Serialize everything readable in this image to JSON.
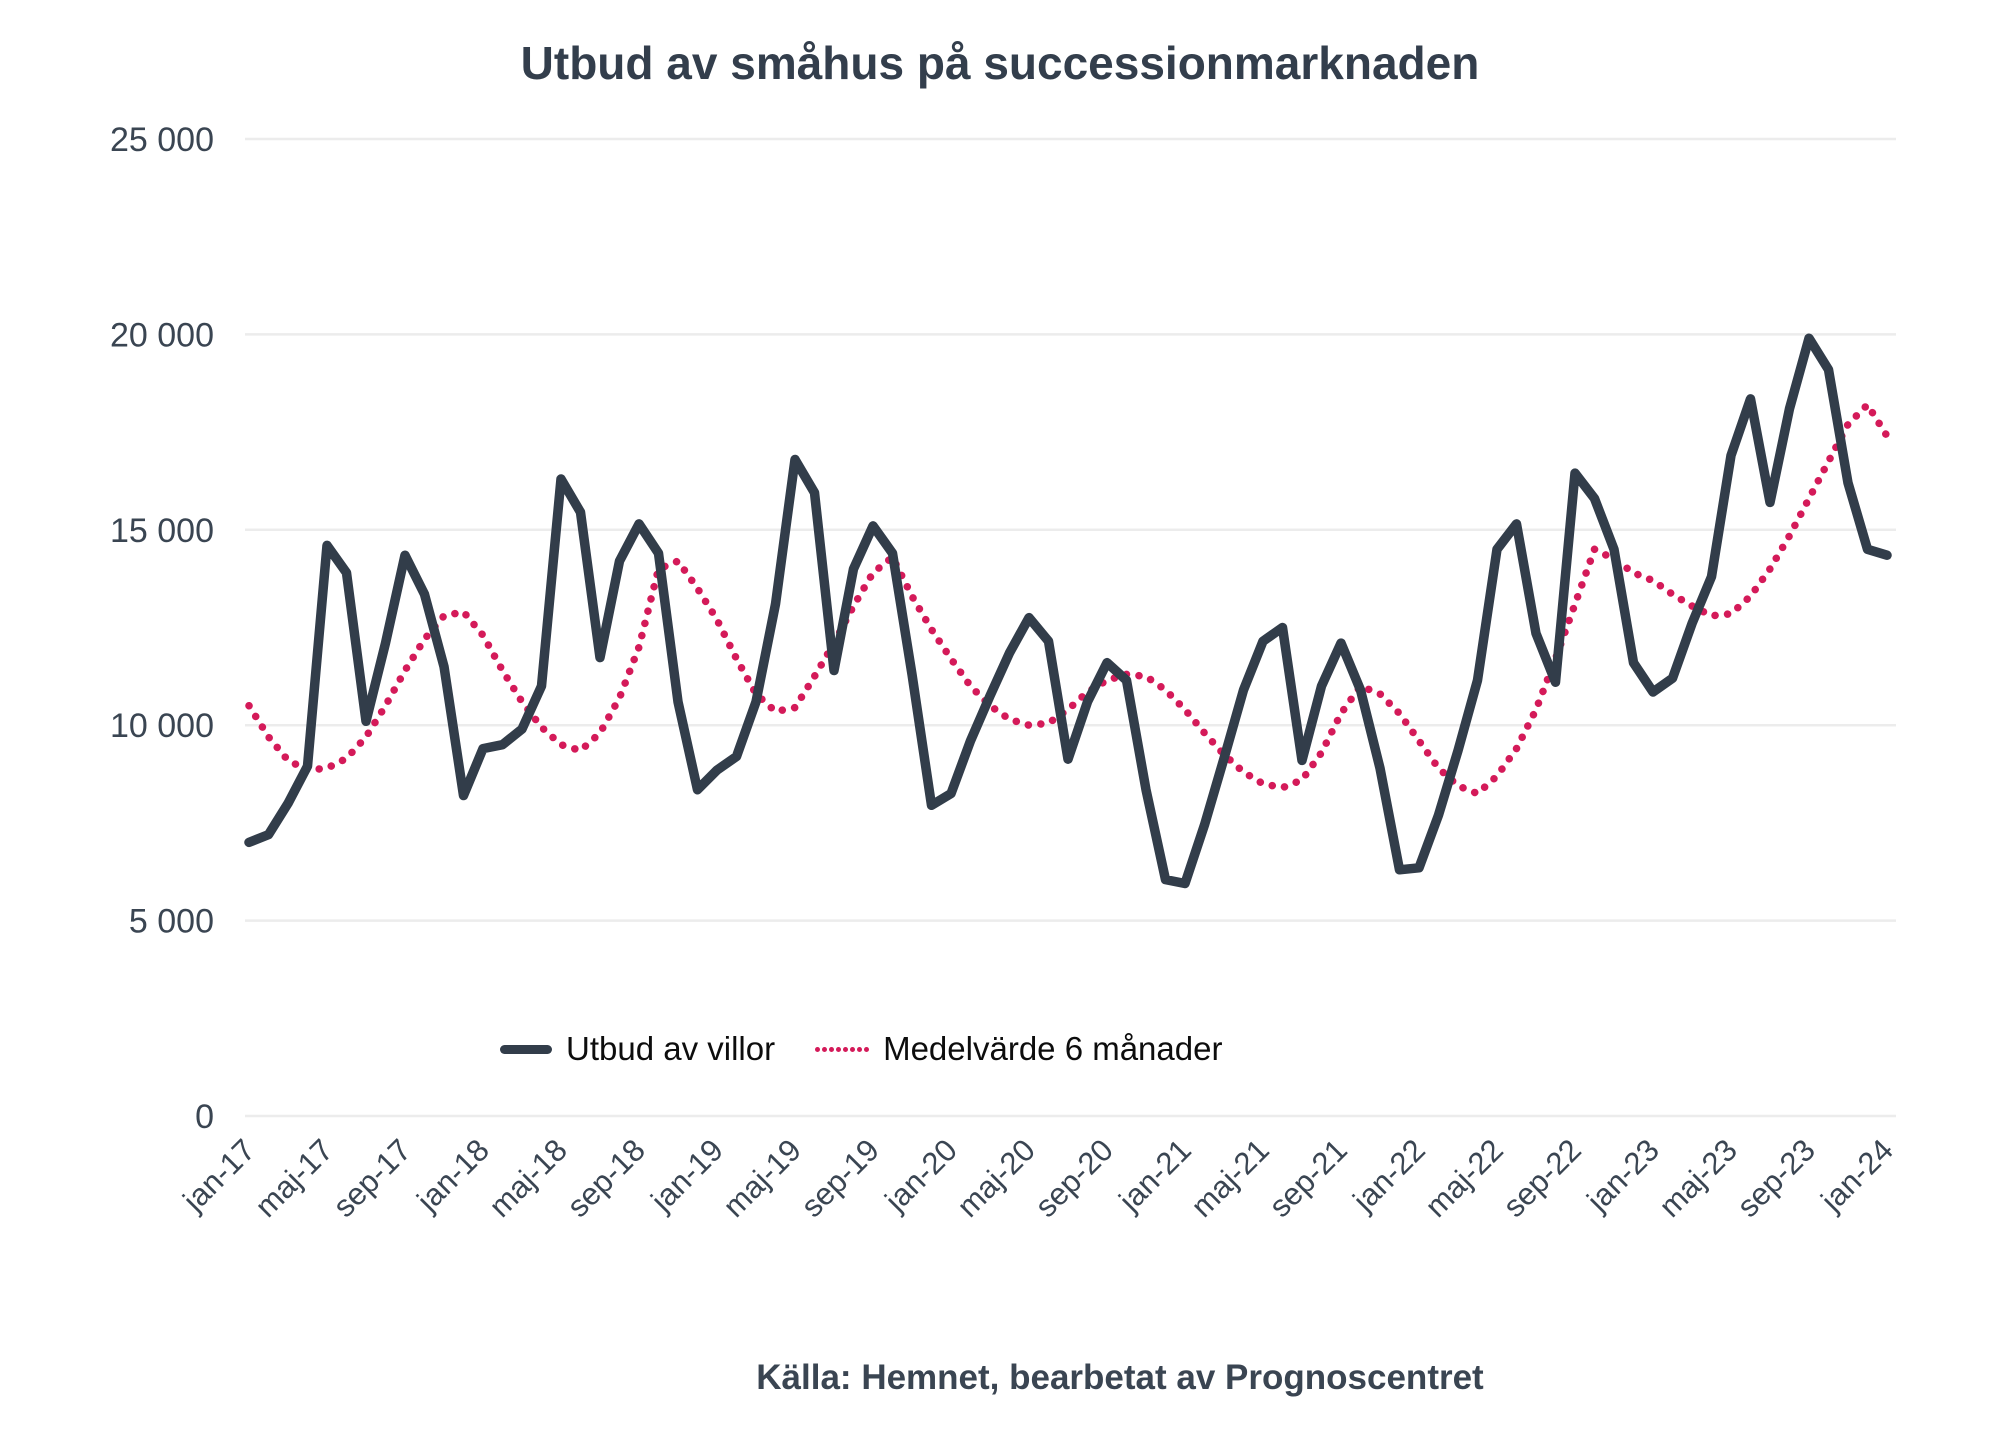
{
  "title": "Utbud av småhus på successionmarknaden",
  "source": "Källa: Hemnet, bearbetat av Prognoscentret",
  "legend": {
    "items": [
      {
        "label": "Utbud av villor",
        "style": "solid"
      },
      {
        "label": "Medelvärde 6 månader",
        "style": "dotted"
      }
    ]
  },
  "colors": {
    "solid_series": "#323d4a",
    "dotted_series": "#d41a59",
    "gridline": "#ececec",
    "axis_text": "#3a4552",
    "title_text": "#333e4c",
    "legend_text": "#0d0d0d",
    "background": "#ffffff"
  },
  "chart_data": {
    "type": "line",
    "title": "Utbud av småhus på successionmarknaden",
    "xlabel": "",
    "ylabel": "",
    "ylim": [
      0,
      25000
    ],
    "yticks": [
      0,
      5000,
      10000,
      15000,
      20000,
      25000
    ],
    "ytick_labels": [
      "0",
      "5 000",
      "10 000",
      "15 000",
      "20 000",
      "25 000"
    ],
    "grid": "horizontal",
    "legend_position": "bottom-center-inside",
    "x_start": "jan-17",
    "x_end": "jan-24",
    "x_interval": "monthly",
    "x_tick_every": 4,
    "x_tick_labels": [
      "jan-17",
      "maj-17",
      "sep-17",
      "jan-18",
      "maj-18",
      "sep-18",
      "jan-19",
      "maj-19",
      "sep-19",
      "jan-20",
      "maj-20",
      "sep-20",
      "jan-21",
      "maj-21",
      "sep-21",
      "jan-22",
      "maj-22",
      "sep-22",
      "jan-23",
      "maj-23",
      "sep-23",
      "jan-24"
    ],
    "series": [
      {
        "name": "Utbud av villor",
        "style": "solid",
        "values": [
          7000,
          7200,
          8000,
          8950,
          14600,
          13900,
          10100,
          12100,
          14350,
          13350,
          11500,
          8200,
          9400,
          9500,
          9900,
          11000,
          16300,
          15450,
          11730,
          14200,
          15150,
          14400,
          10600,
          8350,
          8850,
          9200,
          10600,
          13100,
          16800,
          15950,
          11400,
          14000,
          15100,
          14400,
          11300,
          7950,
          8250,
          9600,
          10750,
          11850,
          12750,
          12150,
          9130,
          10600,
          11600,
          11150,
          8350,
          6050,
          5950,
          7450,
          9150,
          10900,
          12150,
          12500,
          9100,
          11000,
          12100,
          10900,
          8900,
          6300,
          6350,
          7700,
          9350,
          11150,
          14500,
          15150,
          12350,
          11100,
          16450,
          15800,
          14500,
          11600,
          10850,
          11200,
          12600,
          13800,
          16900,
          18350,
          15700,
          18100,
          19900,
          19100,
          16200,
          14500,
          14350
        ]
      },
      {
        "name": "Medelvärde 6 månader",
        "style": "dotted",
        "values": [
          10500,
          9700,
          9100,
          8850,
          8900,
          9150,
          9700,
          10500,
          11400,
          12200,
          12800,
          12900,
          12300,
          11400,
          10600,
          9950,
          9500,
          9350,
          9800,
          10700,
          12000,
          14000,
          14200,
          13500,
          12700,
          11700,
          10800,
          10350,
          10450,
          11250,
          12100,
          13050,
          13900,
          14300,
          13300,
          12450,
          11700,
          11000,
          10500,
          10150,
          10000,
          10050,
          10400,
          10850,
          11150,
          11300,
          11250,
          10900,
          10400,
          9800,
          9250,
          8800,
          8500,
          8400,
          8600,
          9300,
          10300,
          11000,
          10800,
          10300,
          9600,
          8900,
          8450,
          8250,
          8700,
          9400,
          10400,
          11700,
          13100,
          14500,
          14250,
          13900,
          13700,
          13350,
          13050,
          12800,
          12850,
          13300,
          14000,
          14850,
          15800,
          16750,
          17700,
          18200,
          17400
        ]
      }
    ]
  }
}
